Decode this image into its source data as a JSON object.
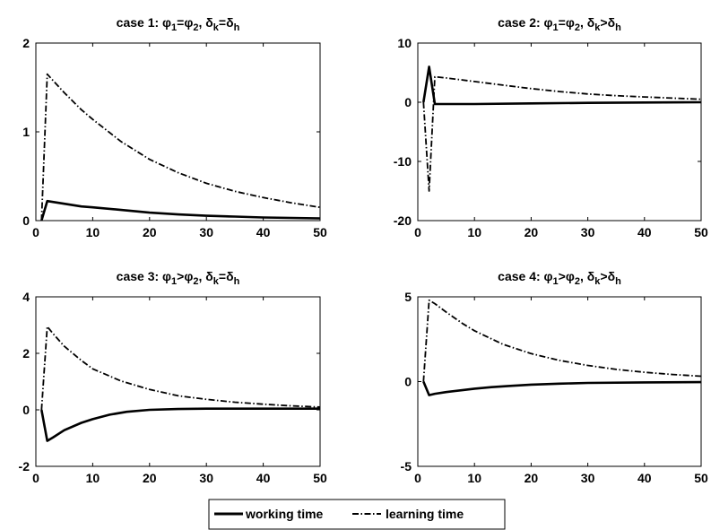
{
  "legend": {
    "entries": [
      {
        "label": "working time",
        "style": "solid"
      },
      {
        "label": "learning time",
        "style": "dash-dot"
      }
    ]
  },
  "chart_data": [
    {
      "type": "line",
      "title": {
        "prefix": "case 1: ",
        "parts": [
          [
            "φ",
            "1"
          ],
          "=",
          [
            "φ",
            "2"
          ],
          ", ",
          [
            "δ",
            "k"
          ],
          "=",
          [
            "δ",
            "h"
          ]
        ]
      },
      "xlim": [
        0,
        50
      ],
      "ylim": [
        0,
        2
      ],
      "xticks": [
        0,
        10,
        20,
        30,
        40,
        50
      ],
      "yticks": [
        0,
        1,
        2
      ],
      "series": [
        {
          "label": "working time",
          "x": [
            1,
            2,
            3,
            5,
            8,
            10,
            15,
            20,
            25,
            30,
            35,
            40,
            45,
            50
          ],
          "y": [
            0,
            0.22,
            0.21,
            0.19,
            0.16,
            0.15,
            0.12,
            0.09,
            0.07,
            0.055,
            0.045,
            0.035,
            0.03,
            0.025
          ]
        },
        {
          "label": "learning time",
          "x": [
            1,
            2,
            3,
            5,
            8,
            10,
            15,
            20,
            25,
            30,
            35,
            40,
            45,
            50
          ],
          "y": [
            0,
            1.65,
            1.58,
            1.44,
            1.25,
            1.14,
            0.89,
            0.69,
            0.54,
            0.42,
            0.33,
            0.26,
            0.2,
            0.15
          ]
        }
      ]
    },
    {
      "type": "line",
      "title": {
        "prefix": "case 2: ",
        "parts": [
          [
            "φ",
            "1"
          ],
          "=",
          [
            "φ",
            "2"
          ],
          ", ",
          [
            "δ",
            "k"
          ],
          ">",
          [
            "δ",
            "h"
          ]
        ]
      },
      "xlim": [
        0,
        50
      ],
      "ylim": [
        -20,
        10
      ],
      "xticks": [
        0,
        10,
        20,
        30,
        40,
        50
      ],
      "yticks": [
        -20,
        -10,
        0,
        10
      ],
      "series": [
        {
          "label": "working time",
          "x": [
            1,
            2,
            3,
            10,
            20,
            30,
            40,
            50
          ],
          "y": [
            0,
            6,
            -0.3,
            -0.3,
            -0.2,
            -0.1,
            -0.05,
            0
          ]
        },
        {
          "label": "learning time",
          "x": [
            1,
            2,
            3,
            5,
            10,
            15,
            20,
            25,
            30,
            35,
            40,
            45,
            50
          ],
          "y": [
            0,
            -15,
            4.3,
            4.1,
            3.5,
            2.9,
            2.3,
            1.8,
            1.4,
            1.1,
            0.9,
            0.7,
            0.5
          ]
        }
      ]
    },
    {
      "type": "line",
      "title": {
        "prefix": "case 3: ",
        "parts": [
          [
            "φ",
            "1"
          ],
          ">",
          [
            "φ",
            "2"
          ],
          ", ",
          [
            "δ",
            "k"
          ],
          "=",
          [
            "δ",
            "h"
          ]
        ]
      },
      "xlim": [
        0,
        50
      ],
      "ylim": [
        -2,
        4
      ],
      "xticks": [
        0,
        10,
        20,
        30,
        40,
        50
      ],
      "yticks": [
        -2,
        0,
        2,
        4
      ],
      "series": [
        {
          "label": "working time",
          "x": [
            1,
            2,
            3,
            5,
            8,
            10,
            13,
            16,
            20,
            25,
            30,
            40,
            50
          ],
          "y": [
            0,
            -1.1,
            -0.98,
            -0.72,
            -0.46,
            -0.33,
            -0.17,
            -0.07,
            0,
            0.03,
            0.04,
            0.04,
            0.04
          ]
        },
        {
          "label": "learning time",
          "x": [
            1,
            2,
            3,
            5,
            8,
            10,
            15,
            20,
            25,
            30,
            35,
            40,
            45,
            50
          ],
          "y": [
            0,
            2.95,
            2.7,
            2.25,
            1.75,
            1.45,
            1.02,
            0.72,
            0.5,
            0.37,
            0.27,
            0.2,
            0.14,
            0.1
          ]
        }
      ]
    },
    {
      "type": "line",
      "title": {
        "prefix": "case 4: ",
        "parts": [
          [
            "φ",
            "1"
          ],
          ">",
          [
            "φ",
            "2"
          ],
          ", ",
          [
            "δ",
            "k"
          ],
          ">",
          [
            "δ",
            "h"
          ]
        ]
      },
      "xlim": [
        0,
        50
      ],
      "ylim": [
        -5,
        5
      ],
      "xticks": [
        0,
        10,
        20,
        30,
        40,
        50
      ],
      "yticks": [
        -5,
        0,
        5
      ],
      "series": [
        {
          "label": "working time",
          "x": [
            1,
            2,
            3,
            5,
            8,
            10,
            13,
            16,
            20,
            25,
            30,
            40,
            50
          ],
          "y": [
            0,
            -0.8,
            -0.72,
            -0.62,
            -0.5,
            -0.42,
            -0.33,
            -0.26,
            -0.18,
            -0.12,
            -0.08,
            -0.05,
            -0.03
          ]
        },
        {
          "label": "learning time",
          "x": [
            1,
            2,
            3,
            5,
            8,
            10,
            15,
            20,
            25,
            30,
            35,
            40,
            45,
            50
          ],
          "y": [
            0,
            4.8,
            4.6,
            4.1,
            3.4,
            3.0,
            2.2,
            1.65,
            1.25,
            0.95,
            0.72,
            0.55,
            0.42,
            0.32
          ]
        }
      ]
    }
  ]
}
